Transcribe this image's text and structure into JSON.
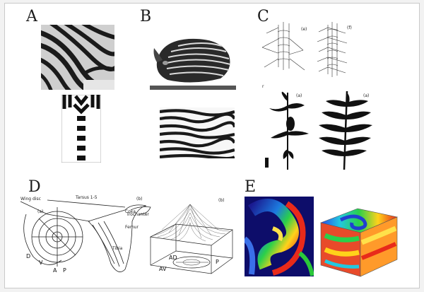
{
  "figure": {
    "panels": [
      {
        "label": "A"
      },
      {
        "label": "B"
      },
      {
        "label": "C",
        "tags": [
          "(e)",
          "(f)",
          "(a)",
          "(a)"
        ],
        "fragment": "r"
      },
      {
        "label": "D",
        "small_text": [
          "Tarsus 1-5",
          "(a)",
          "(b)",
          "(b)",
          "Trochanter",
          "Femur",
          "Tibia",
          "Coxa",
          "Wing disc"
        ],
        "letters": [
          "D",
          "V",
          "A",
          "P",
          "AD",
          "AV",
          "P"
        ]
      },
      {
        "label": "E"
      }
    ]
  }
}
